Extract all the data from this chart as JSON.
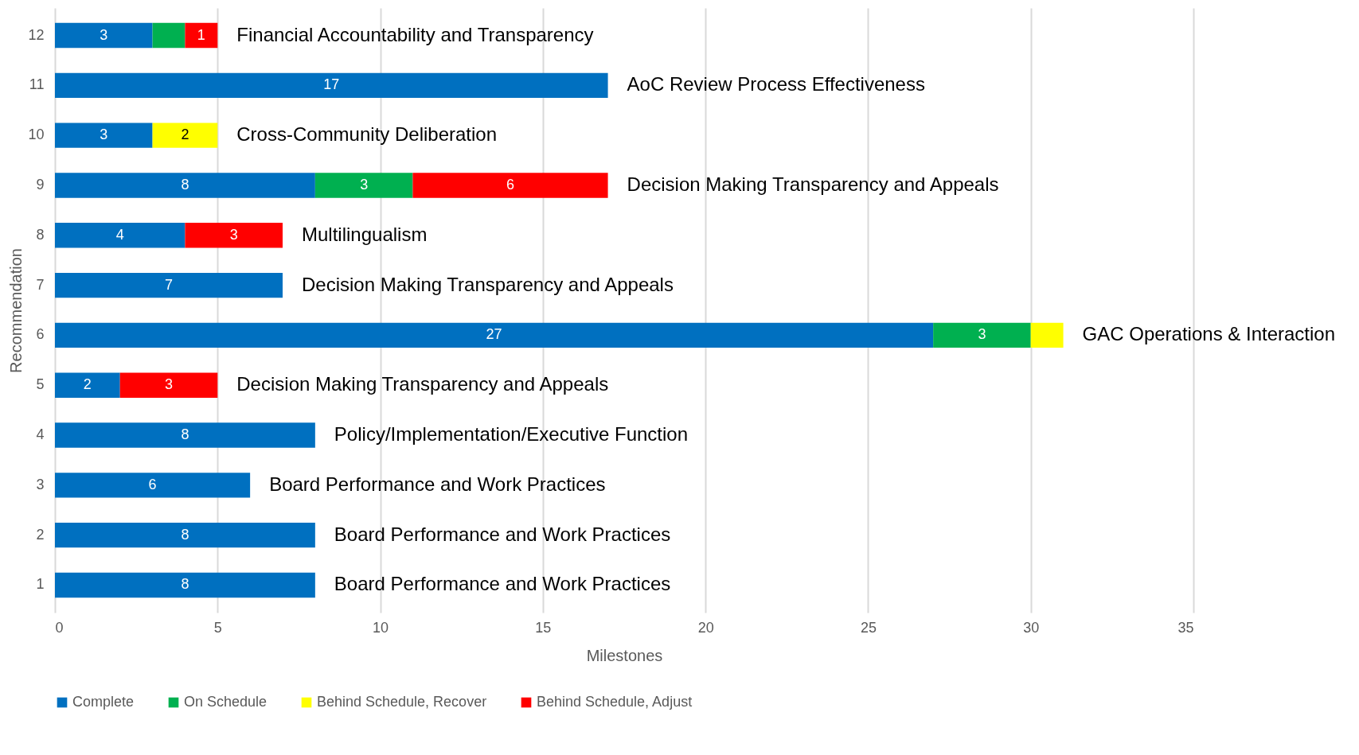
{
  "chart_data": {
    "type": "bar",
    "orientation": "horizontal",
    "stacked": true,
    "categories": [
      "12",
      "11",
      "10",
      "9",
      "8",
      "7",
      "6",
      "5",
      "4",
      "3",
      "2",
      "1"
    ],
    "series": [
      {
        "name": "Complete",
        "color": "#0070c0",
        "values": [
          3,
          17,
          3,
          8,
          4,
          7,
          27,
          2,
          8,
          6,
          8,
          8
        ],
        "value_labels": [
          "3",
          "17",
          "3",
          "8",
          "4",
          "7",
          "27",
          "2",
          "8",
          "6",
          "8",
          "8"
        ]
      },
      {
        "name": "On Schedule",
        "color": "#00b050",
        "values": [
          1,
          null,
          null,
          3,
          null,
          null,
          3,
          null,
          null,
          null,
          null,
          null
        ],
        "value_labels": [
          null,
          null,
          null,
          "3",
          null,
          null,
          "3",
          null,
          null,
          null,
          null,
          null
        ]
      },
      {
        "name": "Behind Schedule, Recover",
        "color": "#ffff00",
        "values": [
          null,
          null,
          2,
          null,
          null,
          null,
          1,
          null,
          null,
          null,
          null,
          null
        ],
        "value_labels": [
          null,
          null,
          "2",
          null,
          null,
          null,
          null,
          null,
          null,
          null,
          null,
          null
        ]
      },
      {
        "name": "Behind Schedule, Adjust",
        "color": "#ff0000",
        "values": [
          1,
          null,
          null,
          6,
          3,
          null,
          null,
          3,
          null,
          null,
          null,
          null
        ],
        "value_labels": [
          "1",
          null,
          null,
          "6",
          "3",
          null,
          null,
          "3",
          null,
          null,
          null,
          null
        ]
      }
    ],
    "xlabel": "Milestones",
    "ylabel": "Recommendation",
    "xlim": [
      0,
      35
    ],
    "xticks": [
      0,
      5,
      10,
      15,
      20,
      25,
      30,
      35
    ],
    "grid": "x",
    "legend": "bottom",
    "annotations": [
      "Financial Accountability and Transparency",
      "AoC Review Process Effectiveness",
      "Cross-Community Deliberation",
      "Decision Making Transparency and Appeals",
      "Multilingualism",
      "Decision Making Transparency and Appeals",
      "GAC Operations & Interaction",
      "Decision Making Transparency and Appeals",
      "Policy/Implementation/Executive Function",
      "Board Performance and Work Practices",
      "Board Performance and Work Practices",
      "Board Performance and Work Practices"
    ]
  }
}
